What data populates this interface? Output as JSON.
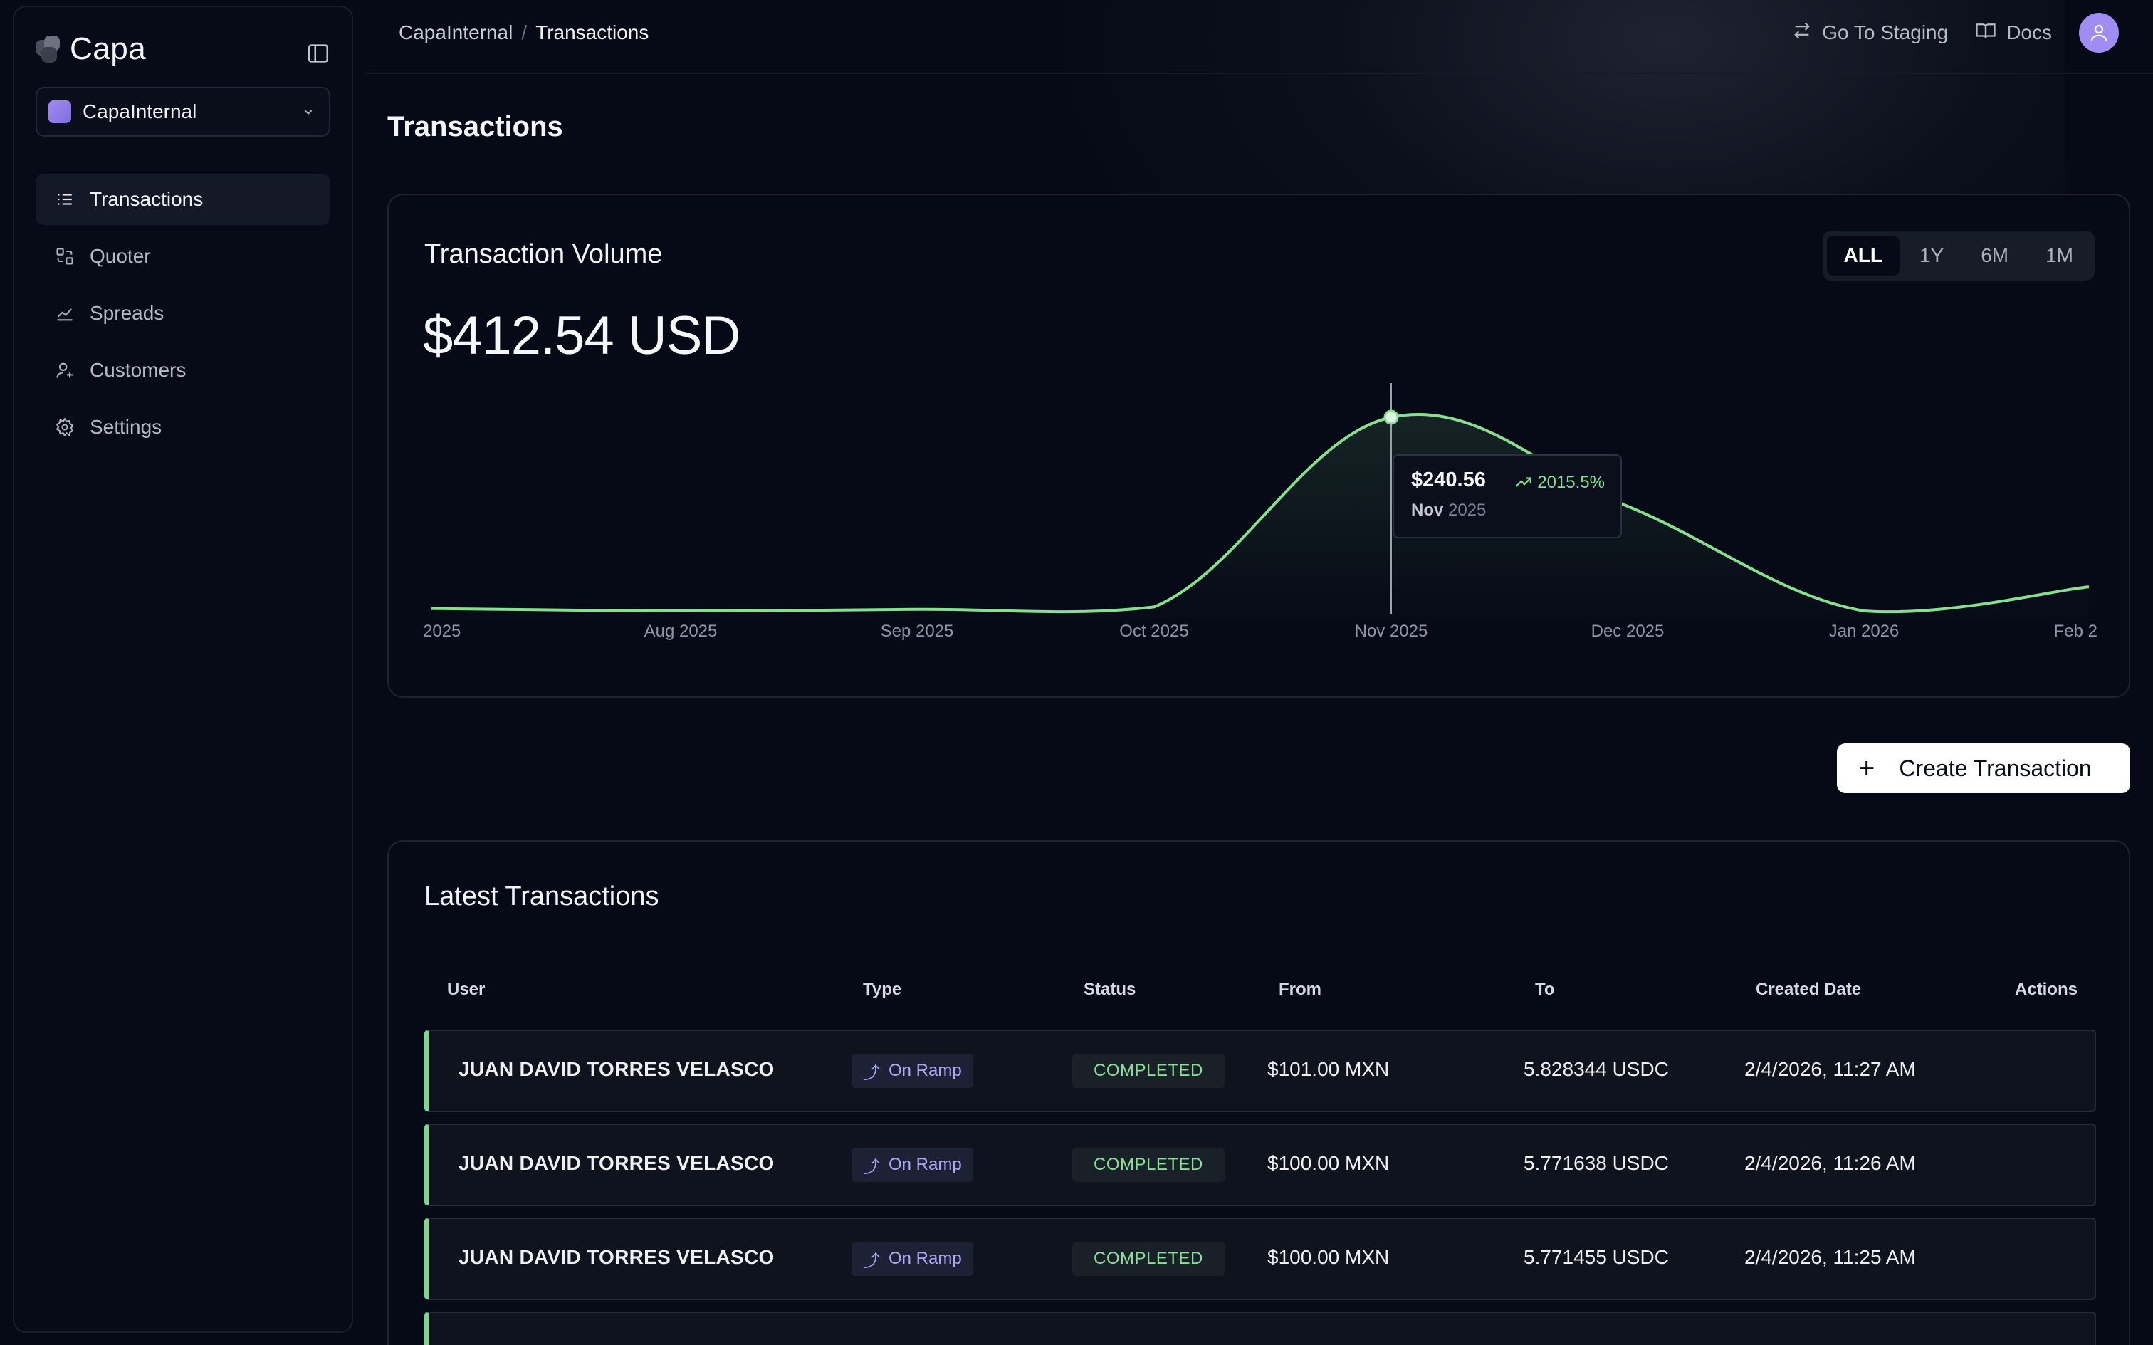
{
  "sidebar": {
    "brand": "Capa",
    "org": "CapaInternal",
    "items": [
      {
        "label": "Transactions",
        "icon": "list-icon",
        "active": true
      },
      {
        "label": "Quoter",
        "icon": "quoter-icon",
        "active": false
      },
      {
        "label": "Spreads",
        "icon": "chart-line-icon",
        "active": false
      },
      {
        "label": "Customers",
        "icon": "user-plus-icon",
        "active": false
      },
      {
        "label": "Settings",
        "icon": "gear-icon",
        "active": false
      }
    ]
  },
  "header": {
    "breadcrumb": [
      "CapaInternal",
      "Transactions"
    ],
    "breadcrumb_sep": "/",
    "staging_label": "Go To Staging",
    "docs_label": "Docs"
  },
  "page": {
    "title": "Transactions"
  },
  "volume": {
    "title": "Transaction Volume",
    "amount": "$412.54 USD",
    "ranges": [
      "ALL",
      "1Y",
      "6M",
      "1M"
    ],
    "selected_range": "ALL",
    "tooltip": {
      "value": "$240.56",
      "change": "2015.5%",
      "month": "Nov",
      "year": "2025"
    },
    "line_color": "#86e08f"
  },
  "chart_data": {
    "type": "area",
    "x": [
      "2025",
      "Aug 2025",
      "Sep 2025",
      "Oct 2025",
      "Nov 2025",
      "Dec 2025",
      "Jan 2026",
      "Feb 2"
    ],
    "values": [
      3,
      0,
      2,
      5,
      240.56,
      130,
      0,
      30
    ],
    "ylim": [
      0,
      260
    ],
    "highlight_index": 4,
    "grid": false
  },
  "actions": {
    "create_label": "Create Transaction"
  },
  "transactions": {
    "title": "Latest Transactions",
    "columns": [
      "User",
      "Type",
      "Status",
      "From",
      "To",
      "Created Date",
      "Actions"
    ],
    "rows": [
      {
        "user": "JUAN DAVID TORRES VELASCO",
        "type": "On Ramp",
        "status": "COMPLETED",
        "from": "$101.00 MXN",
        "to": "5.828344 USDC",
        "created": "2/4/2026, 11:27 AM"
      },
      {
        "user": "JUAN DAVID TORRES VELASCO",
        "type": "On Ramp",
        "status": "COMPLETED",
        "from": "$100.00 MXN",
        "to": "5.771638 USDC",
        "created": "2/4/2026, 11:26 AM"
      },
      {
        "user": "JUAN DAVID TORRES VELASCO",
        "type": "On Ramp",
        "status": "COMPLETED",
        "from": "$100.00 MXN",
        "to": "5.771455 USDC",
        "created": "2/4/2026, 11:25 AM"
      }
    ]
  }
}
